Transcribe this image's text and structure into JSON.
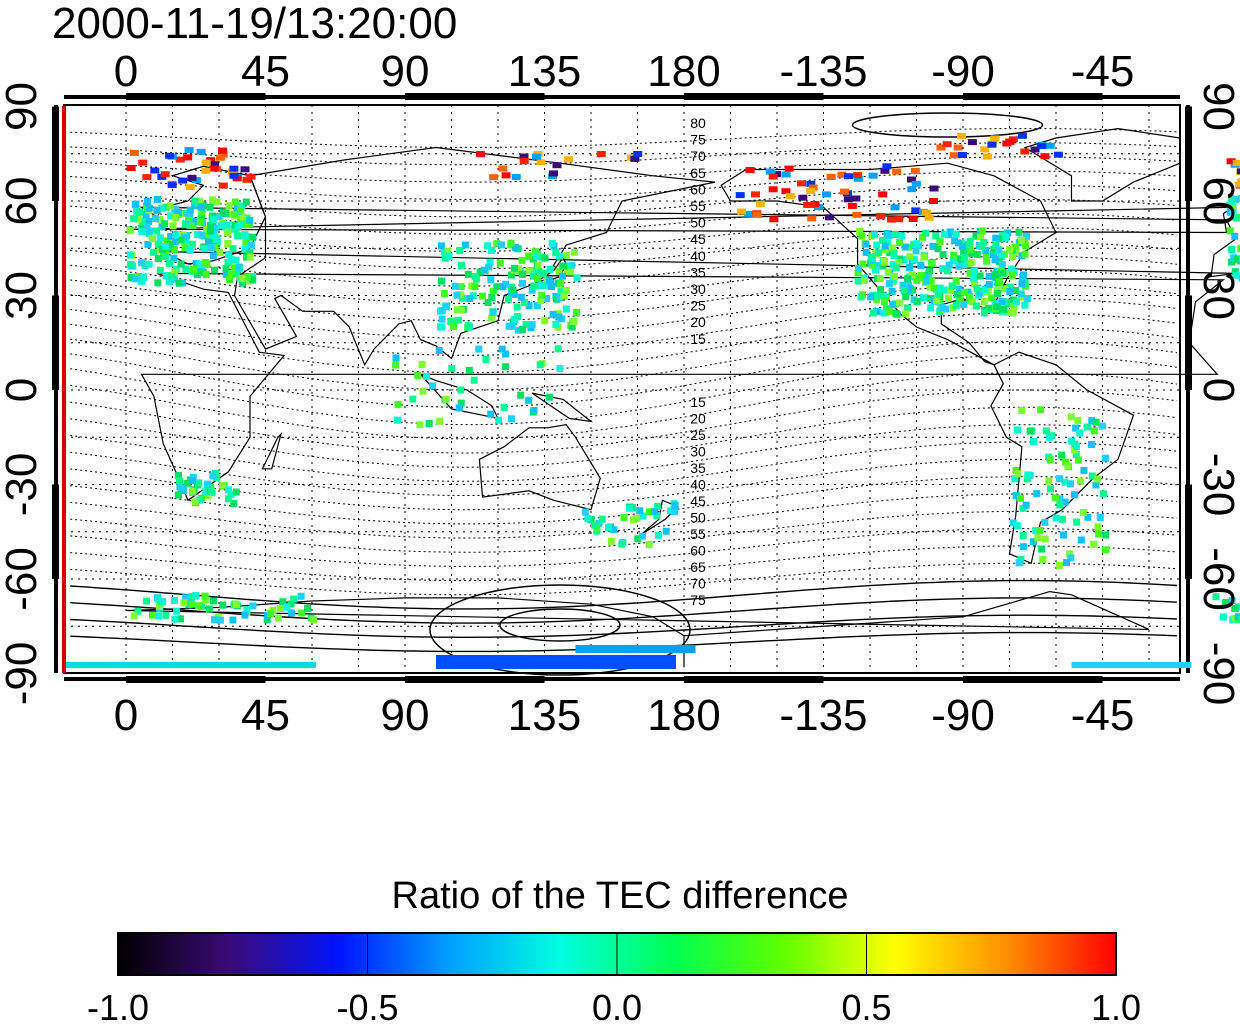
{
  "title": "2000-11-19/13:20:00",
  "colorbar": {
    "title": "Ratio of the TEC difference",
    "ticks": [
      "-1.0",
      "-0.5",
      "0.0",
      "0.5",
      "1.0"
    ],
    "range": [
      -1.0,
      1.0
    ],
    "palette": [
      "#000000",
      "#3a0a78",
      "#0014ff",
      "#00a0ff",
      "#00ffe0",
      "#00ff50",
      "#60ff00",
      "#ffff00",
      "#ff9000",
      "#ff0000"
    ]
  },
  "map": {
    "lon_ticks": [
      "0",
      "45",
      "90",
      "135",
      "180",
      "-135",
      "-90",
      "-45"
    ],
    "lat_ticks": [
      "90",
      "60",
      "30",
      "0",
      "-30",
      "-60",
      "-90"
    ],
    "contour_labels_north": [
      "80",
      "75",
      "70",
      "65",
      "60",
      "55",
      "50",
      "45",
      "40",
      "35",
      "30",
      "25",
      "20",
      "15"
    ],
    "contour_labels_south": [
      "15",
      "20",
      "25",
      "30",
      "35",
      "40",
      "45",
      "50",
      "55",
      "60",
      "65",
      "70",
      "75"
    ],
    "marker_color": "#dd0000",
    "grid": true,
    "projection": "cylindrical, longitude centered at 162E"
  }
}
